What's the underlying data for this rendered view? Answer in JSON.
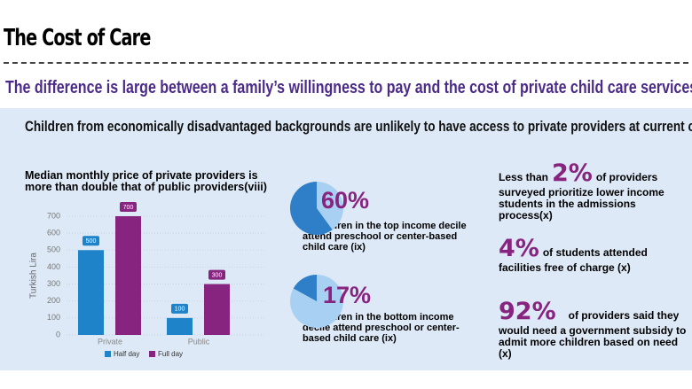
{
  "header": {
    "title": "The Cost of Care",
    "subtitle": "The difference is large between a family’s willingness to pay and the cost of private child care services",
    "banner": "Children from economically disadvantaged backgrounds are unlikely to have access to private providers at current costs"
  },
  "chart_data": [
    {
      "type": "bar",
      "title": "Median monthly price of private providers is more than double that of public providers(viii)",
      "y_label": "Turkish Lira",
      "categories": [
        "Private",
        "Public"
      ],
      "series": [
        {
          "name": "Half day",
          "color": "#1f83c9",
          "values": [
            500,
            100
          ]
        },
        {
          "name": "Full day",
          "color": "#86247f",
          "values": [
            700,
            300
          ]
        }
      ],
      "ylim": [
        0,
        700
      ],
      "yticks": [
        0,
        100,
        200,
        300,
        400,
        500,
        600,
        700
      ],
      "grid": true
    },
    {
      "type": "pie",
      "values": [
        60
      ],
      "value_labels": [
        "60%"
      ],
      "color": "#2e7fc7",
      "caption": "of children in the top income decile attend preschool or center-based child care (ix)"
    },
    {
      "type": "pie",
      "values": [
        17
      ],
      "value_labels": [
        "17%"
      ],
      "color": "#2e7fc7",
      "caption": "of children in the bottom income decile attend preschool or center-based child care (ix)"
    }
  ],
  "stats": [
    {
      "lead": "Less than",
      "value": "2%",
      "text": "of providers surveyed prioritize lower income students in the admissions process(x)"
    },
    {
      "value": "4%",
      "text": "of students attended facilities free of charge (x)"
    },
    {
      "value": "92%",
      "text": "of providers said they would need a government subsidy to admit more children based on need (x)"
    }
  ]
}
